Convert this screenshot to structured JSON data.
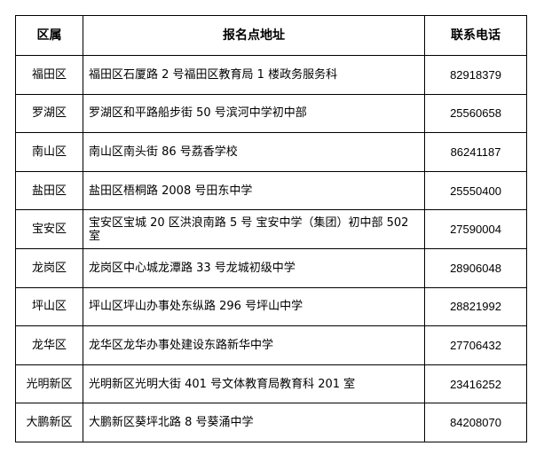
{
  "table": {
    "headers": [
      "区属",
      "报名点地址",
      "联系电话"
    ],
    "rows": [
      {
        "district": "福田区",
        "address": "福田区石厦路 2 号福田区教育局 1 楼政务服务科",
        "phone": "82918379"
      },
      {
        "district": "罗湖区",
        "address": "罗湖区和平路船步街 50 号滨河中学初中部",
        "phone": "25560658"
      },
      {
        "district": "南山区",
        "address": "南山区南头街 86 号荔香学校",
        "phone": "86241187"
      },
      {
        "district": "盐田区",
        "address": "盐田区梧桐路 2008 号田东中学",
        "phone": "25550400"
      },
      {
        "district": "宝安区",
        "address": "宝安区宝城 20 区洪浪南路 5 号  宝安中学（集团）初中部 502 室",
        "phone": "27590004"
      },
      {
        "district": "龙岗区",
        "address": "龙岗区中心城龙潭路 33 号龙城初级中学",
        "phone": "28906048"
      },
      {
        "district": "坪山区",
        "address": "坪山区坪山办事处东纵路 296 号坪山中学",
        "phone": "28821992"
      },
      {
        "district": "龙华区",
        "address": "龙华区龙华办事处建设东路新华中学",
        "phone": "27706432"
      },
      {
        "district": "光明新区",
        "address": "光明新区光明大街 401 号文体教育局教育科 201 室",
        "phone": "23416252"
      },
      {
        "district": "大鹏新区",
        "address": "大鹏新区葵坪北路 8 号葵涌中学",
        "phone": "84208070"
      }
    ]
  }
}
